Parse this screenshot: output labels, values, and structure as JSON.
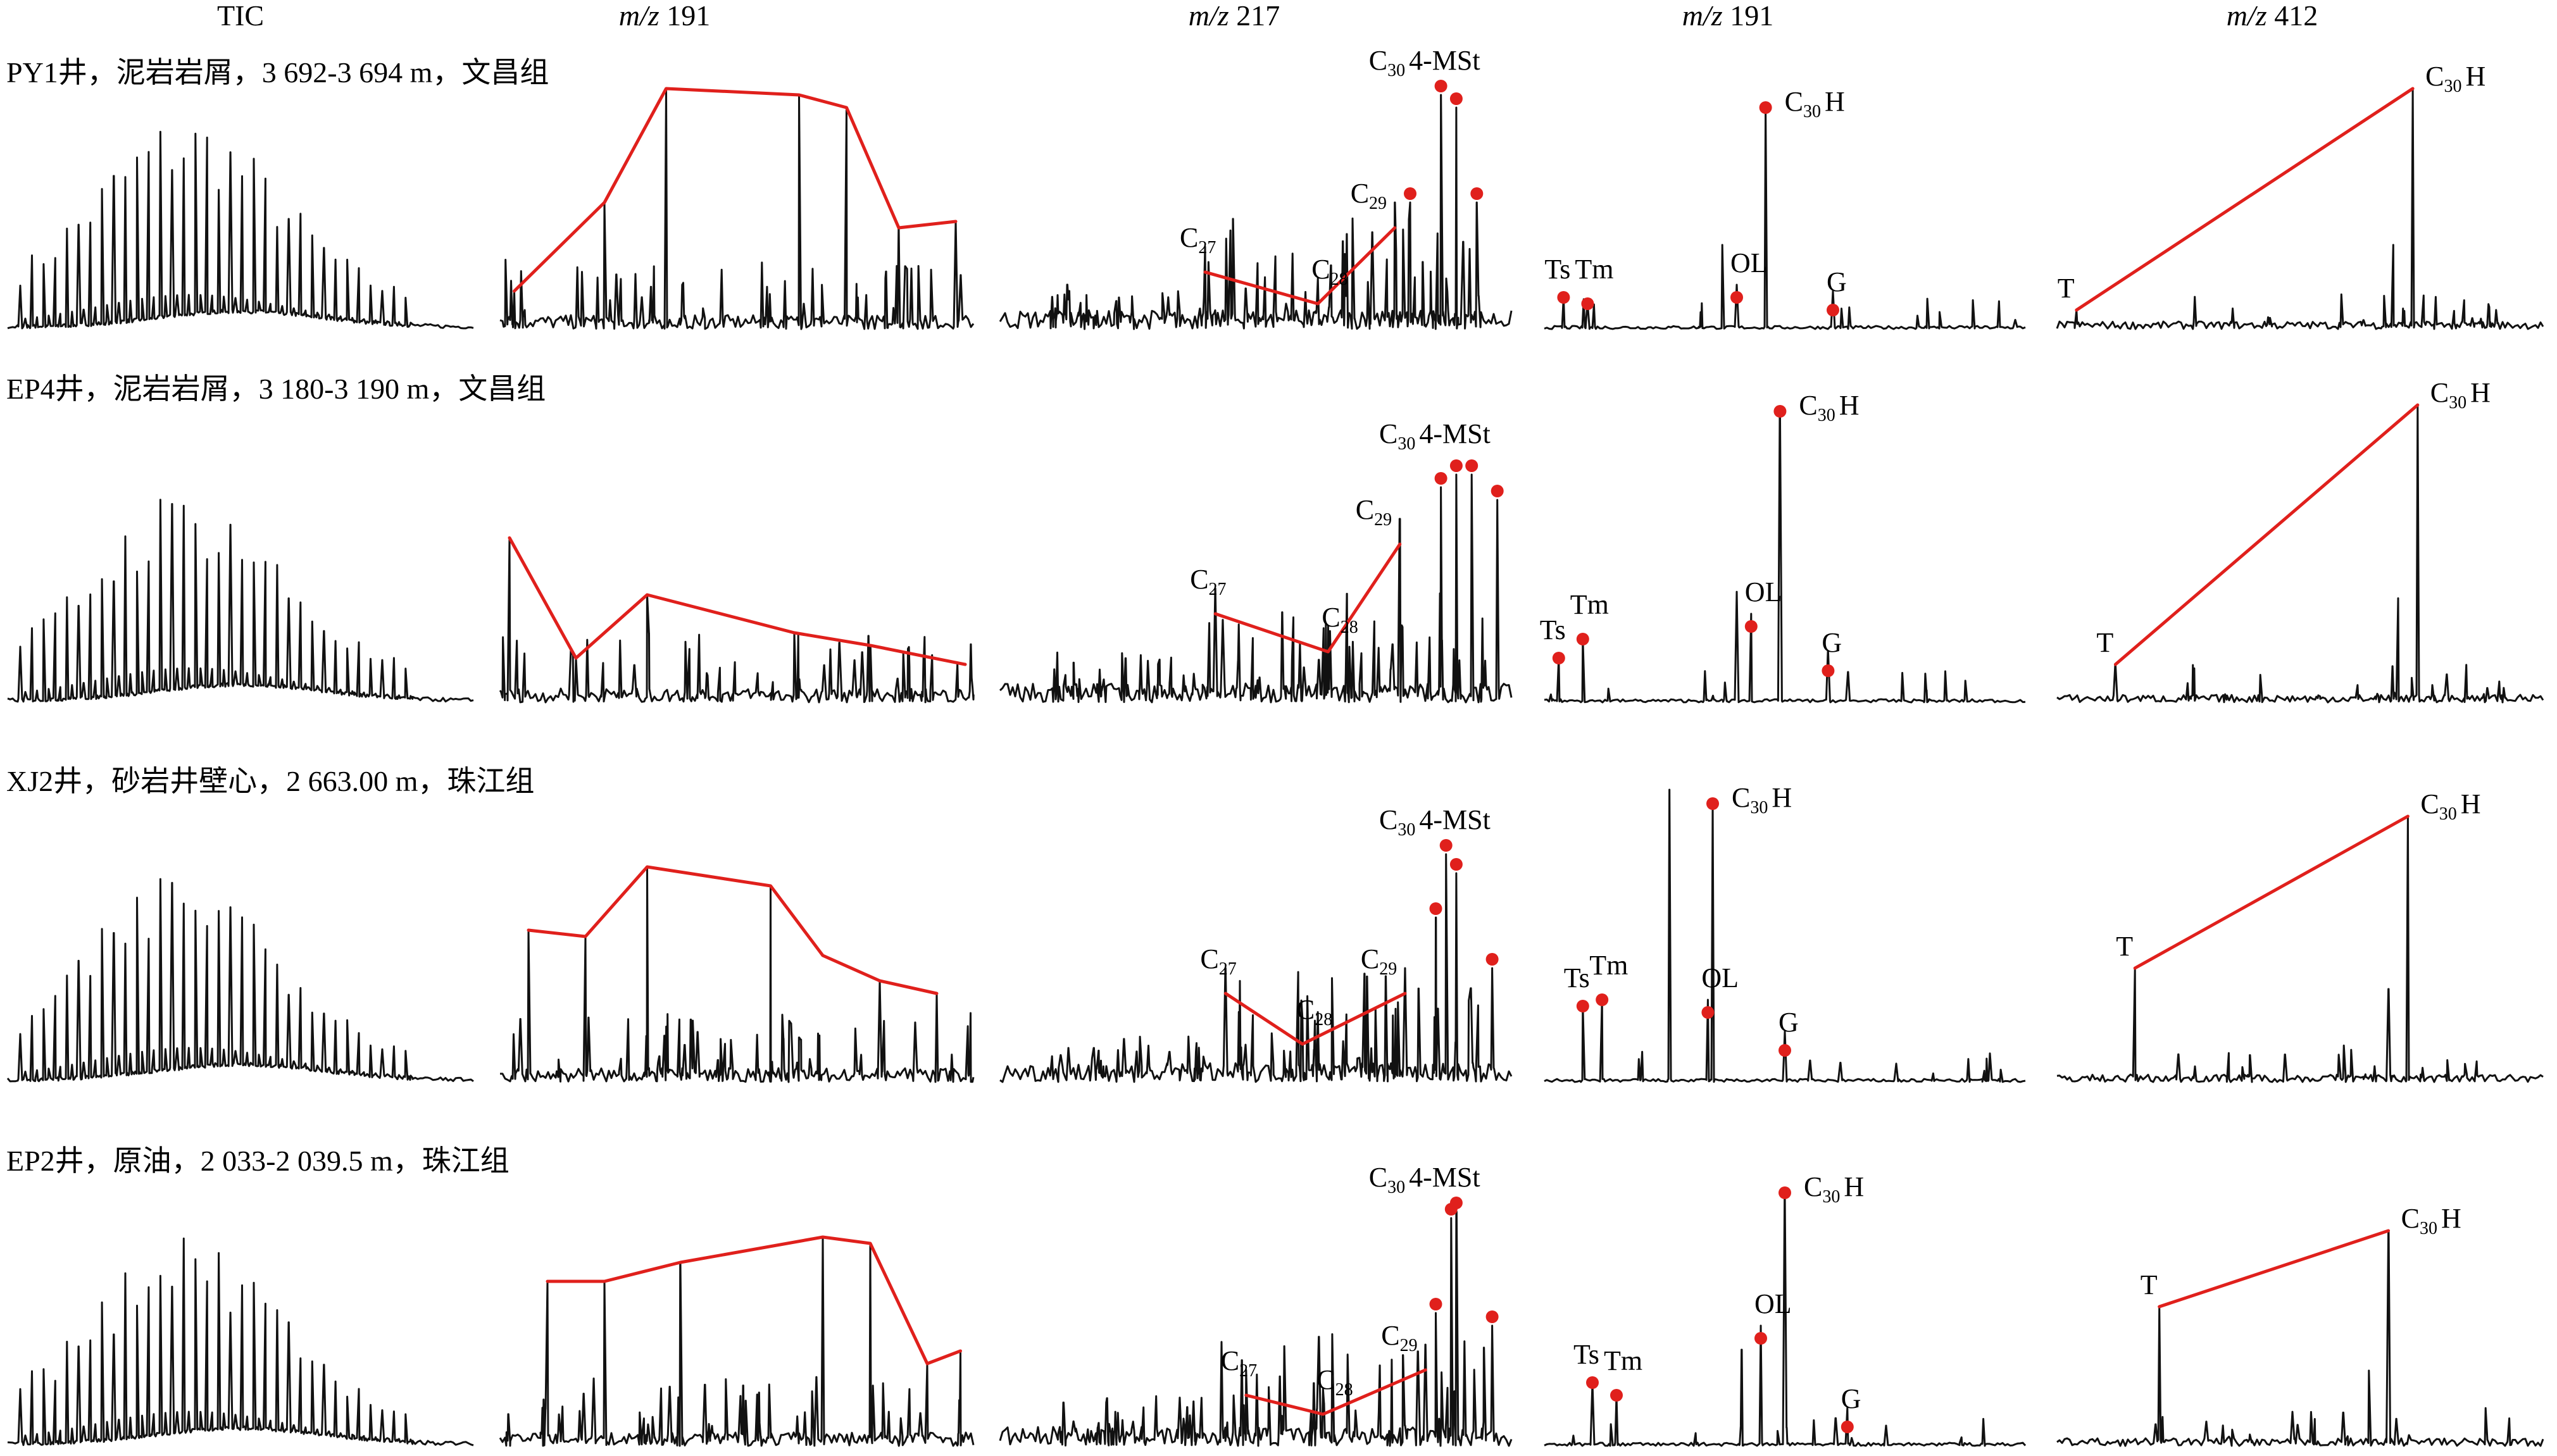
{
  "chart_data": {
    "type": "line",
    "columns": [
      {
        "main": "TIC",
        "italic": ""
      },
      {
        "main": "191",
        "italic": "m/z"
      },
      {
        "main": "217",
        "italic": "m/z"
      },
      {
        "main": "191",
        "italic": "m/z"
      },
      {
        "main": "412",
        "italic": "m/z"
      }
    ],
    "rows": [
      {
        "label": "PY1井，泥岩岩屑，3 692-3 694 m，文昌组",
        "panels": [
          {
            "peaks": []
          },
          {
            "peaks": []
          },
          {
            "peaks": [
              {
                "label": "C",
                "sub": "27"
              },
              {
                "label": "C",
                "sub": "28"
              },
              {
                "label": "C",
                "sub": "29"
              },
              {
                "label": "C",
                "sub": "30",
                "suffix": "4-MSt"
              }
            ]
          },
          {
            "peaks": [
              {
                "label": "Ts"
              },
              {
                "label": "Tm"
              },
              {
                "label": "OL"
              },
              {
                "label": "G"
              },
              {
                "label": "C",
                "sub": "30",
                "suffix": "H"
              }
            ]
          },
          {
            "peaks": [
              {
                "label": "T"
              },
              {
                "label": "C",
                "sub": "30",
                "suffix": "H"
              }
            ]
          }
        ]
      },
      {
        "label": "EP4井，泥岩岩屑，3 180-3 190 m，文昌组",
        "panels": [
          {
            "peaks": []
          },
          {
            "peaks": []
          },
          {
            "peaks": [
              {
                "label": "C",
                "sub": "27"
              },
              {
                "label": "C",
                "sub": "28"
              },
              {
                "label": "C",
                "sub": "29"
              },
              {
                "label": "C",
                "sub": "30",
                "suffix": "4-MSt"
              }
            ]
          },
          {
            "peaks": [
              {
                "label": "Ts"
              },
              {
                "label": "Tm"
              },
              {
                "label": "OL"
              },
              {
                "label": "G"
              },
              {
                "label": "C",
                "sub": "30",
                "suffix": "H"
              }
            ]
          },
          {
            "peaks": [
              {
                "label": "T"
              },
              {
                "label": "C",
                "sub": "30",
                "suffix": "H"
              }
            ]
          }
        ]
      },
      {
        "label": "XJ2井，砂岩井壁心，2 663.00 m，珠江组",
        "panels": [
          {
            "peaks": []
          },
          {
            "peaks": []
          },
          {
            "peaks": [
              {
                "label": "C",
                "sub": "27"
              },
              {
                "label": "C",
                "sub": "28"
              },
              {
                "label": "C",
                "sub": "29"
              },
              {
                "label": "C",
                "sub": "30",
                "suffix": "4-MSt"
              }
            ]
          },
          {
            "peaks": [
              {
                "label": "Ts"
              },
              {
                "label": "Tm"
              },
              {
                "label": "OL"
              },
              {
                "label": "G"
              },
              {
                "label": "C",
                "sub": "30",
                "suffix": "H"
              }
            ]
          },
          {
            "peaks": [
              {
                "label": "T"
              },
              {
                "label": "C",
                "sub": "30",
                "suffix": "H"
              }
            ]
          }
        ]
      },
      {
        "label": "EP2井，原油，2 033-2 039.5 m，珠江组",
        "panels": [
          {
            "peaks": []
          },
          {
            "peaks": []
          },
          {
            "peaks": [
              {
                "label": "C",
                "sub": "27"
              },
              {
                "label": "C",
                "sub": "28"
              },
              {
                "label": "C",
                "sub": "29"
              },
              {
                "label": "C",
                "sub": "30",
                "suffix": "4-MSt"
              }
            ]
          },
          {
            "peaks": [
              {
                "label": "Ts"
              },
              {
                "label": "Tm"
              },
              {
                "label": "OL"
              },
              {
                "label": "G"
              },
              {
                "label": "C",
                "sub": "30",
                "suffix": "H"
              }
            ]
          },
          {
            "peaks": [
              {
                "label": "T"
              },
              {
                "label": "C",
                "sub": "30",
                "suffix": "H"
              }
            ]
          }
        ]
      }
    ],
    "colors": {
      "trace": "#111111",
      "marker": "#e0201c",
      "envelope": "#e0201c"
    },
    "grid": false,
    "legend": "none"
  }
}
